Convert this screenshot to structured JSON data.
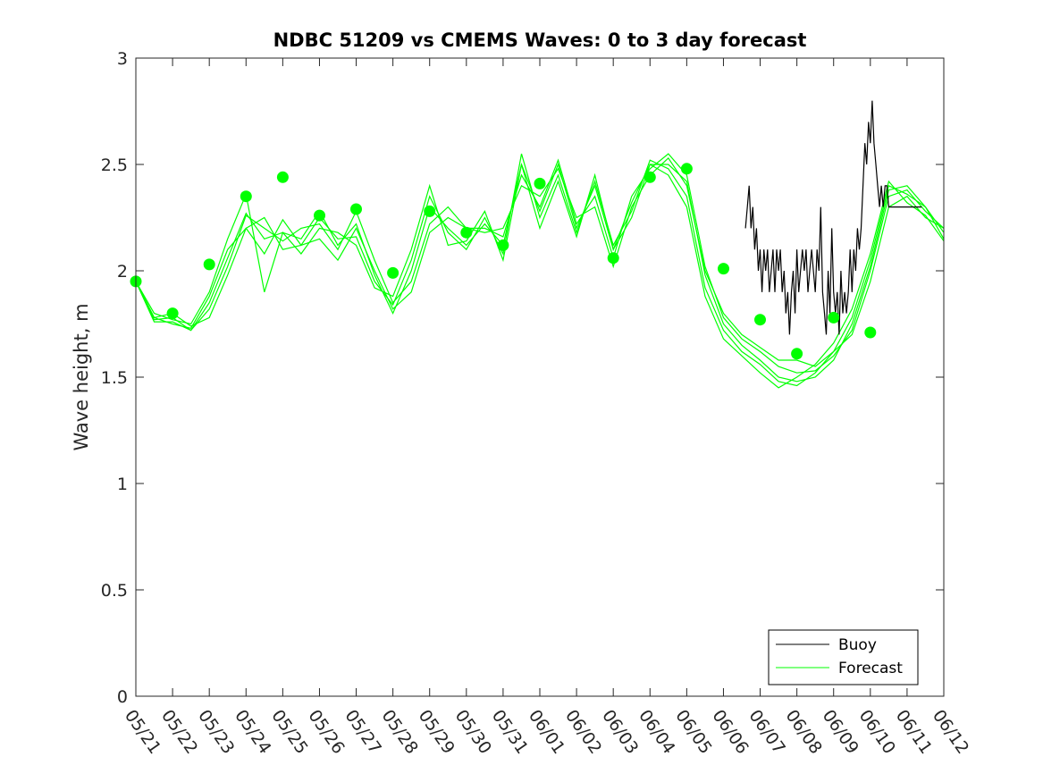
{
  "chart_data": {
    "type": "line",
    "title": "NDBC 51209 vs CMEMS Waves: 0 to 3 day forecast",
    "xlabel": "",
    "ylabel": "Wave height, m",
    "xlim": [
      "05/21",
      "06/12"
    ],
    "ylim": [
      0,
      3
    ],
    "yticks": [
      0,
      0.5,
      1,
      1.5,
      2,
      2.5,
      3
    ],
    "xtick_labels": [
      "05/21",
      "05/22",
      "05/23",
      "05/24",
      "05/25",
      "05/26",
      "05/27",
      "05/28",
      "05/29",
      "05/30",
      "05/31",
      "06/01",
      "06/02",
      "06/03",
      "06/04",
      "06/05",
      "06/06",
      "06/07",
      "06/08",
      "06/09",
      "06/10",
      "06/11",
      "06/12"
    ],
    "grid": false,
    "legend_placement": "bottom-right",
    "colors": {
      "buoy": "#000000",
      "forecast": "#00ff00"
    },
    "series": [
      {
        "name": "Buoy",
        "color": "#000000",
        "x": [
          16.6,
          16.65,
          16.7,
          16.75,
          16.8,
          16.85,
          16.9,
          16.95,
          17.0,
          17.05,
          17.1,
          17.15,
          17.2,
          17.25,
          17.3,
          17.35,
          17.4,
          17.45,
          17.5,
          17.55,
          17.6,
          17.65,
          17.7,
          17.75,
          17.8,
          17.85,
          17.9,
          17.95,
          18.0,
          18.05,
          18.1,
          18.15,
          18.2,
          18.25,
          18.3,
          18.35,
          18.4,
          18.45,
          18.5,
          18.55,
          18.6,
          18.65,
          18.7,
          18.75,
          18.8,
          18.85,
          18.9,
          18.95,
          19.0,
          19.05,
          19.1,
          19.15,
          19.2,
          19.25,
          19.3,
          19.35,
          19.4,
          19.45,
          19.5,
          19.55,
          19.6,
          19.65,
          19.7,
          19.75,
          19.8,
          19.85,
          19.9,
          19.95,
          20.0,
          20.05,
          20.1,
          20.15,
          20.2,
          20.25,
          20.3,
          20.35,
          20.4,
          20.45,
          20.5,
          20.55,
          20.6,
          20.65,
          20.7,
          20.75,
          20.8,
          20.85,
          20.9,
          20.95,
          21.0,
          21.05,
          21.1,
          21.15,
          21.2,
          21.25,
          21.3,
          21.35,
          21.4
        ],
        "values": [
          2.2,
          2.3,
          2.4,
          2.2,
          2.3,
          2.1,
          2.2,
          2.0,
          2.1,
          1.9,
          2.1,
          2.0,
          2.1,
          1.9,
          2.0,
          2.1,
          1.9,
          2.1,
          2.0,
          2.1,
          1.9,
          2.0,
          1.8,
          1.9,
          1.7,
          1.9,
          2.0,
          1.8,
          2.1,
          1.9,
          2.0,
          2.1,
          2.0,
          2.1,
          1.9,
          2.0,
          2.1,
          2.0,
          1.9,
          2.1,
          2.0,
          2.3,
          1.9,
          1.8,
          1.7,
          2.0,
          1.8,
          2.2,
          1.9,
          1.8,
          1.9,
          1.7,
          2.0,
          1.8,
          1.9,
          1.8,
          1.9,
          2.1,
          1.9,
          2.1,
          2.0,
          2.2,
          2.1,
          2.2,
          2.4,
          2.6,
          2.5,
          2.7,
          2.6,
          2.8,
          2.6,
          2.5,
          2.4,
          2.3,
          2.4,
          2.3,
          2.4,
          2.4,
          2.3,
          2.3,
          2.3,
          2.3,
          2.3,
          2.3,
          2.3,
          2.3,
          2.3,
          2.3,
          2.3,
          2.3,
          2.3,
          2.3,
          2.3,
          2.3,
          2.3,
          2.3,
          2.3
        ]
      },
      {
        "name": "Forecast",
        "color": "#00ff00",
        "x": [
          0,
          0.5,
          1,
          1.5,
          2,
          2.5,
          3,
          3.5,
          4,
          4.5,
          5,
          5.5,
          6,
          6.5,
          7,
          7.5,
          8,
          8.5,
          9,
          9.5,
          10,
          10.5,
          11,
          11.5,
          12,
          12.5,
          13,
          13.5,
          14,
          14.5,
          15,
          15.5,
          16,
          16.5,
          17,
          17.5,
          18,
          18.5,
          19,
          19.5,
          20,
          20.5,
          21,
          21.5,
          22
        ],
        "values": [
          1.95,
          1.78,
          1.8,
          1.74,
          1.78,
          1.98,
          2.2,
          2.25,
          2.1,
          2.12,
          2.15,
          2.05,
          2.2,
          2.0,
          1.82,
          1.9,
          2.18,
          2.25,
          2.2,
          2.18,
          2.2,
          2.4,
          2.35,
          2.48,
          2.25,
          2.3,
          2.02,
          2.3,
          2.45,
          2.53,
          2.4,
          2.0,
          1.8,
          1.7,
          1.64,
          1.58,
          1.58,
          1.55,
          1.62,
          1.7,
          1.95,
          2.3,
          2.35,
          2.25,
          2.2
        ]
      },
      {
        "name": "",
        "color": "#00ff00",
        "x": [
          0,
          0.5,
          1,
          1.5,
          2,
          2.5,
          3,
          3.5,
          4,
          4.5,
          5,
          5.5,
          6,
          6.5,
          7,
          7.5,
          8,
          8.5,
          9,
          9.5,
          10,
          10.5,
          11,
          11.5,
          12,
          12.5,
          13,
          13.5,
          14,
          14.5,
          15,
          15.5,
          16,
          16.5,
          17,
          17.5,
          18,
          18.5,
          19,
          19.5,
          20,
          20.5,
          21,
          21.5,
          22
        ],
        "values": [
          1.95,
          1.77,
          1.78,
          1.72,
          1.82,
          2.02,
          2.26,
          2.2,
          2.14,
          2.2,
          2.22,
          2.1,
          2.28,
          2.05,
          1.85,
          1.95,
          2.22,
          2.3,
          2.2,
          2.2,
          2.16,
          2.45,
          2.3,
          2.52,
          2.22,
          2.35,
          2.06,
          2.35,
          2.48,
          2.55,
          2.45,
          2.02,
          1.78,
          1.68,
          1.62,
          1.55,
          1.52,
          1.53,
          1.6,
          1.72,
          2.0,
          2.35,
          2.38,
          2.28,
          2.2
        ]
      },
      {
        "name": "",
        "color": "#00ff00",
        "x": [
          0,
          0.5,
          1,
          1.5,
          2,
          2.5,
          3,
          3.5,
          4,
          4.5,
          5,
          5.5,
          6,
          6.5,
          7,
          7.5,
          8,
          8.5,
          9,
          9.5,
          10,
          10.5,
          11,
          11.5,
          12,
          12.5,
          13,
          13.5,
          14,
          14.5,
          15,
          15.5,
          16,
          16.5,
          17,
          17.5,
          18,
          18.5,
          19,
          19.5,
          20,
          20.5,
          21,
          21.5,
          22
        ],
        "values": [
          1.95,
          1.76,
          1.76,
          1.72,
          1.85,
          2.06,
          2.27,
          2.15,
          2.18,
          2.15,
          2.28,
          2.12,
          2.22,
          1.98,
          1.8,
          2.0,
          2.3,
          2.2,
          2.12,
          2.22,
          2.12,
          2.5,
          2.28,
          2.5,
          2.2,
          2.4,
          2.1,
          2.32,
          2.5,
          2.5,
          2.42,
          1.98,
          1.75,
          1.65,
          1.58,
          1.5,
          1.48,
          1.5,
          1.58,
          1.75,
          2.02,
          2.38,
          2.4,
          2.3,
          2.18
        ]
      },
      {
        "name": "",
        "color": "#00ff00",
        "x": [
          0,
          0.5,
          1,
          1.5,
          2,
          2.5,
          3,
          3.5,
          4,
          4.5,
          5,
          5.5,
          6,
          6.5,
          7,
          7.5,
          8,
          8.5,
          9,
          9.5,
          10,
          10.5,
          11,
          11.5,
          12,
          12.5,
          13,
          13.5,
          14,
          14.5,
          15,
          15.5,
          16,
          16.5,
          17,
          17.5,
          18,
          18.5,
          19,
          19.5,
          20,
          20.5,
          21,
          21.5,
          22
        ],
        "values": [
          1.95,
          1.78,
          1.75,
          1.73,
          1.88,
          2.1,
          2.2,
          2.08,
          2.24,
          2.12,
          2.25,
          2.15,
          2.16,
          1.95,
          1.84,
          2.05,
          2.35,
          2.18,
          2.1,
          2.25,
          2.08,
          2.55,
          2.25,
          2.45,
          2.18,
          2.42,
          2.12,
          2.28,
          2.52,
          2.48,
          2.35,
          1.92,
          1.72,
          1.62,
          1.56,
          1.48,
          1.46,
          1.52,
          1.62,
          1.78,
          2.05,
          2.4,
          2.36,
          2.3,
          2.15
        ]
      },
      {
        "name": "",
        "color": "#00ff00",
        "x": [
          0,
          0.5,
          1,
          1.5,
          2,
          2.5,
          3,
          3.5,
          4,
          4.5,
          5,
          5.5,
          6,
          6.5,
          7,
          7.5,
          8,
          8.5,
          9,
          9.5,
          10,
          10.5,
          11,
          11.5,
          12,
          12.5,
          13,
          13.5,
          14,
          14.5,
          15,
          15.5,
          16,
          16.5,
          17,
          17.5,
          18,
          18.5,
          19,
          19.5,
          20,
          20.5,
          21,
          21.5,
          22
        ],
        "values": [
          1.95,
          1.8,
          1.77,
          1.75,
          1.9,
          2.15,
          2.36,
          1.9,
          2.18,
          2.08,
          2.2,
          2.18,
          2.12,
          1.92,
          1.88,
          2.1,
          2.4,
          2.12,
          2.14,
          2.28,
          2.05,
          2.5,
          2.2,
          2.42,
          2.16,
          2.45,
          2.1,
          2.25,
          2.5,
          2.45,
          2.3,
          1.88,
          1.68,
          1.6,
          1.52,
          1.45,
          1.5,
          1.56,
          1.66,
          1.82,
          2.08,
          2.42,
          2.32,
          2.26,
          2.14
        ]
      }
    ],
    "markers": {
      "color": "#00ff00",
      "x": [
        0,
        1,
        2,
        3,
        4,
        5,
        6,
        7,
        8,
        9,
        10,
        11,
        13,
        14,
        15,
        16,
        17,
        18,
        19,
        20
      ],
      "values": [
        1.95,
        1.8,
        2.03,
        2.35,
        2.44,
        2.26,
        2.29,
        1.99,
        2.28,
        2.18,
        2.12,
        2.41,
        2.06,
        2.44,
        2.48,
        2.01,
        1.77,
        1.61,
        1.78,
        1.71
      ]
    },
    "legend": [
      "Buoy",
      "Forecast"
    ]
  }
}
